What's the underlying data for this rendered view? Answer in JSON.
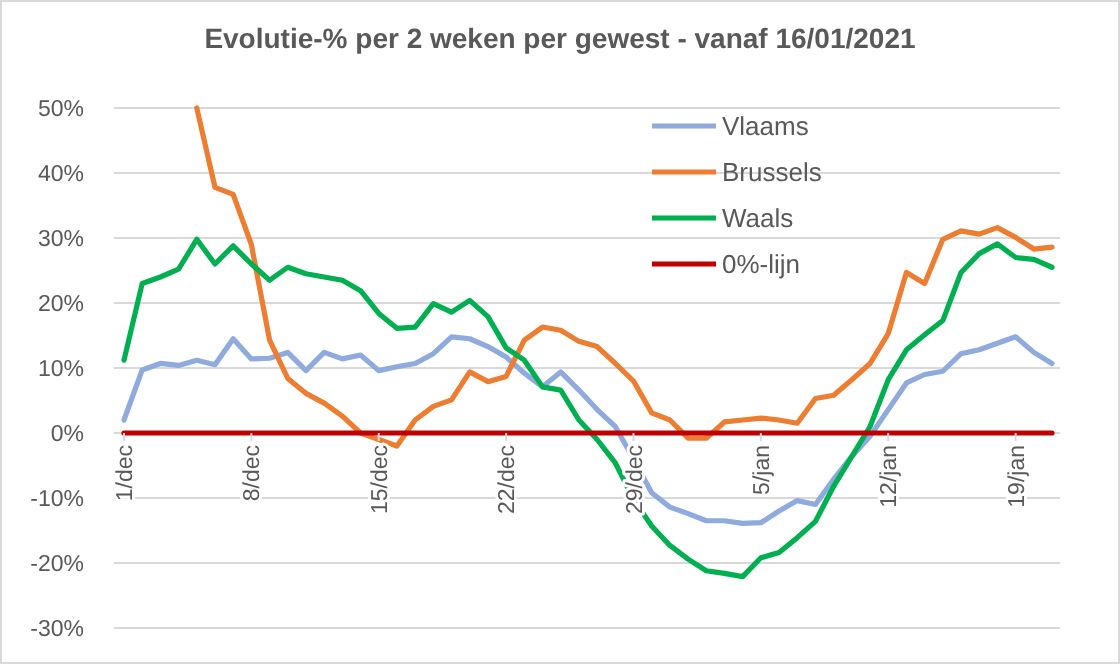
{
  "chart_data": {
    "type": "line",
    "title": "Evolutie-% per 2 weken per gewest - vanaf 16/01/2021",
    "categories": [
      "1/dec",
      null,
      null,
      null,
      null,
      null,
      null,
      "8/dec",
      null,
      null,
      null,
      null,
      null,
      null,
      "15/dec",
      null,
      null,
      null,
      null,
      null,
      null,
      "22/dec",
      null,
      null,
      null,
      null,
      null,
      null,
      "29/dec",
      null,
      null,
      null,
      null,
      null,
      null,
      "5/jan",
      null,
      null,
      null,
      null,
      null,
      null,
      "12/jan",
      null,
      null,
      null,
      null,
      null,
      null,
      "19/jan",
      null,
      null
    ],
    "series": [
      {
        "name": "Vlaams",
        "color": "#8faadc",
        "values": [
          2,
          9.7,
          10.7,
          10.4,
          11.2,
          10.5,
          14.5,
          11.4,
          11.5,
          12.4,
          9.6,
          12.4,
          11.4,
          12,
          9.6,
          10.2,
          10.7,
          12.2,
          14.8,
          14.5,
          13.3,
          11.7,
          9.2,
          7.1,
          9.4,
          6.6,
          3.6,
          1,
          -4,
          -9.2,
          -11.4,
          -12.4,
          -13.5,
          -13.5,
          -13.9,
          -13.8,
          -12,
          -10.4,
          -11,
          -7.1,
          -3.6,
          -0.5,
          3.6,
          7.7,
          9,
          9.5,
          12.2,
          12.8,
          13.8,
          14.8,
          12.4,
          10.7
        ]
      },
      {
        "name": "Brussels",
        "color": "#ed7d31",
        "values": [
          null,
          null,
          null,
          null,
          50,
          37.8,
          36.7,
          29,
          14.3,
          8.4,
          6.1,
          4.6,
          2.6,
          0,
          -1,
          -2,
          2,
          4.1,
          5.1,
          9.4,
          7.9,
          8.7,
          14.3,
          16.3,
          15.8,
          14.1,
          13.3,
          10.7,
          8,
          3.1,
          2,
          -0.8,
          -0.8,
          1.7,
          2,
          2.3,
          2,
          1.5,
          5.3,
          5.8,
          8.2,
          10.7,
          15.3,
          24.7,
          23,
          29.8,
          31.1,
          30.6,
          31.6,
          30.1,
          28.3,
          28.6
        ]
      },
      {
        "name": "Waals",
        "color": "#00b050",
        "values": [
          11.2,
          23,
          24,
          25.2,
          29.8,
          26,
          28.8,
          26,
          23.5,
          25.5,
          24.5,
          24,
          23.5,
          21.9,
          18.4,
          16.1,
          16.3,
          19.9,
          18.6,
          20.4,
          17.9,
          13.1,
          11.2,
          7.1,
          6.6,
          2,
          -1,
          -4.6,
          -10.2,
          -14.3,
          -17.3,
          -19.4,
          -21.2,
          -21.6,
          -22.1,
          -19.2,
          -18.4,
          -16.1,
          -13.6,
          -8.2,
          -3.6,
          1,
          8.2,
          12.8,
          15.1,
          17.3,
          24.7,
          27.6,
          29.1,
          27,
          26.7,
          25.5
        ]
      },
      {
        "name": "0%-lijn",
        "color": "#c00000",
        "values": [
          0,
          0,
          0,
          0,
          0,
          0,
          0,
          0,
          0,
          0,
          0,
          0,
          0,
          0,
          0,
          0,
          0,
          0,
          0,
          0,
          0,
          0,
          0,
          0,
          0,
          0,
          0,
          0,
          0,
          0,
          0,
          0,
          0,
          0,
          0,
          0,
          0,
          0,
          0,
          0,
          0,
          0,
          0,
          0,
          0,
          0,
          0,
          0,
          0,
          0,
          0,
          0
        ]
      }
    ],
    "ylim": [
      -30,
      50
    ],
    "yticks": [
      {
        "value": -30,
        "label": "-30%"
      },
      {
        "value": -20,
        "label": "-20%"
      },
      {
        "value": -10,
        "label": "-10%"
      },
      {
        "value": 0,
        "label": "0%"
      },
      {
        "value": 10,
        "label": "10%"
      },
      {
        "value": 20,
        "label": "20%"
      },
      {
        "value": 30,
        "label": "30%"
      },
      {
        "value": 40,
        "label": "40%"
      },
      {
        "value": 50,
        "label": "50%"
      }
    ],
    "grid": "y",
    "legend": "top right",
    "marker": "none",
    "line_style": "solid"
  }
}
